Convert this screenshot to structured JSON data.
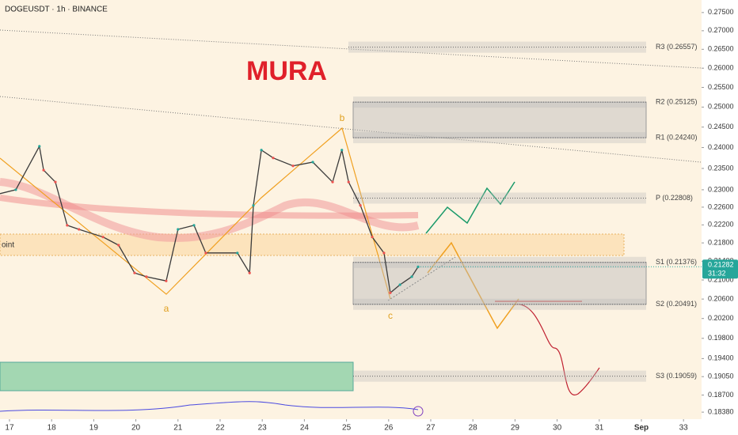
{
  "header": {
    "symbol": "DOGEUSDT · 1h · BINANCE"
  },
  "chart_data": {
    "type": "line",
    "title": "MURA",
    "color": "#3a3a3a",
    "log_scale": true,
    "x": [
      16.774,
      17.15,
      17.71,
      17.81,
      18.09,
      18.37,
      18.65,
      19.22,
      19.59,
      19.97,
      20.25,
      20.72,
      21.0,
      21.38,
      21.66,
      22.41,
      22.7,
      22.79,
      22.98,
      23.26,
      23.73,
      24.2,
      24.67,
      24.89,
      25.05,
      25.33,
      25.61,
      25.89,
      26.04,
      26.27,
      26.55,
      26.7
    ],
    "values": [
      0.2291,
      0.23,
      0.2403,
      0.2346,
      0.2318,
      0.2219,
      0.221,
      0.2193,
      0.2175,
      0.2115,
      0.2107,
      0.2098,
      0.221,
      0.2219,
      0.2158,
      0.2158,
      0.2115,
      0.2264,
      0.2394,
      0.2375,
      0.2356,
      0.2365,
      0.2318,
      0.2394,
      0.2318,
      0.2264,
      0.2193,
      0.2158,
      0.2073,
      0.209,
      0.2107,
      0.2128
    ],
    "xlim": [
      16.775,
      33.41
    ],
    "ylim": [
      0.1825,
      0.2785
    ],
    "xticks": [
      17,
      18,
      19,
      20,
      21,
      22,
      23,
      24,
      25,
      26,
      27,
      28,
      29,
      30,
      31,
      {
        "value": 32,
        "label": "Sep"
      },
      33
    ],
    "yticks": [
      {
        "value": 0.275,
        "label": "0.27500"
      },
      {
        "value": 0.27,
        "label": "0.27000"
      },
      {
        "value": 0.265,
        "label": "0.26500"
      },
      {
        "value": 0.26,
        "label": "0.26000"
      },
      {
        "value": 0.255,
        "label": "0.25500"
      },
      {
        "value": 0.25,
        "label": "0.25000"
      },
      {
        "value": 0.245,
        "label": "0.24500"
      },
      {
        "value": 0.24,
        "label": "0.24000"
      },
      {
        "value": 0.235,
        "label": "0.23500"
      },
      {
        "value": 0.23,
        "label": "0.23000"
      },
      {
        "value": 0.226,
        "label": "0.22600"
      },
      {
        "value": 0.222,
        "label": "0.22200"
      },
      {
        "value": 0.218,
        "label": "0.21800"
      },
      {
        "value": 0.214,
        "label": "0.21400"
      },
      {
        "value": 0.21,
        "label": "0.21000"
      },
      {
        "value": 0.206,
        "label": "0.20600"
      },
      {
        "value": 0.202,
        "label": "0.20200"
      },
      {
        "value": 0.198,
        "label": "0.19800"
      },
      {
        "value": 0.194,
        "label": "0.19400"
      },
      {
        "value": 0.1905,
        "label": "0.19050"
      },
      {
        "value": 0.187,
        "label": "0.18700"
      },
      {
        "value": 0.1838,
        "label": "0.18380"
      }
    ],
    "levels": [
      {
        "value": 0.26557,
        "label": "R3 (0.26557)"
      },
      {
        "value": 0.25125,
        "label": "R2 (0.25125)"
      },
      {
        "value": 0.2424,
        "label": "R1 (0.24240)"
      },
      {
        "value": 0.22808,
        "label": "P (0.22808)"
      },
      {
        "value": 0.21376,
        "label": "S1 (0.21376)"
      },
      {
        "value": 0.20491,
        "label": "S2 (0.20491)"
      },
      {
        "value": 0.19059,
        "label": "S3 (0.19059)"
      }
    ],
    "last_price": {
      "value": 0.21282,
      "label": "0.21282"
    },
    "countdown": "31:32",
    "annotations": [
      "a",
      "b",
      "c",
      "oint"
    ]
  }
}
